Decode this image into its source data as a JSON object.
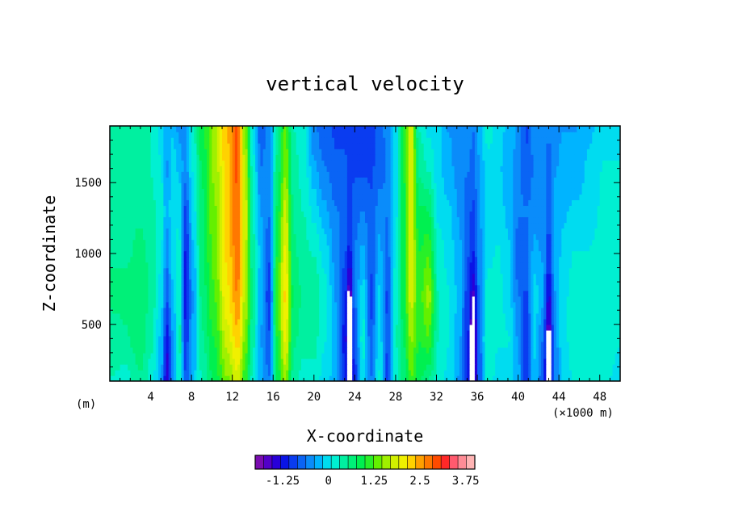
{
  "chart_data": {
    "type": "heatmap",
    "title": "vertical velocity",
    "xlabel": "X-coordinate",
    "ylabel": "Z-coordinate",
    "x_unit_left": "(m)",
    "x_unit_right": "(×1000 m)",
    "xlim": [
      0,
      50
    ],
    "ylim": [
      100,
      1900
    ],
    "x_ticks": [
      4,
      8,
      12,
      16,
      20,
      24,
      28,
      32,
      36,
      40,
      44,
      48
    ],
    "x_tick_labels": [
      "4",
      "8",
      "12",
      "16",
      "20",
      "24",
      "28",
      "32",
      "36",
      "40",
      "44",
      "48"
    ],
    "y_ticks": [
      500,
      1000,
      1500
    ],
    "y_tick_labels": [
      "500",
      "1000",
      "1500"
    ],
    "colorbar": {
      "vmin": -2.0,
      "vmax": 4.0,
      "tick_values": [
        -1.25,
        0,
        1.25,
        2.5,
        3.75
      ],
      "tick_labels": [
        "-1.25",
        "0",
        "1.25",
        "2.5",
        "3.75"
      ],
      "colors": [
        "#7a0cb0",
        "#5200c8",
        "#2800d8",
        "#0a14e6",
        "#0a3cf0",
        "#0a64f5",
        "#0a8cfa",
        "#00b4ff",
        "#00dcf0",
        "#00f0d2",
        "#00f0a0",
        "#00f078",
        "#00f050",
        "#28f028",
        "#64f000",
        "#a0f000",
        "#d2f000",
        "#f0f000",
        "#ffd200",
        "#ffa000",
        "#ff7800",
        "#ff4b00",
        "#ff2828",
        "#ff5a6e",
        "#ff8c96",
        "#ffb4b4"
      ]
    },
    "columns": [
      {
        "x": 0.0,
        "w": [
          0.3,
          0.4,
          0.6,
          0.5,
          0.4,
          0.5,
          0.4
        ]
      },
      {
        "x": 1.5,
        "w": [
          0.2,
          0.5,
          0.6,
          0.5,
          0.5,
          0.4,
          0.5
        ]
      },
      {
        "x": 3.0,
        "w": [
          0.5,
          0.7,
          0.7,
          0.6,
          0.5,
          0.5,
          0.5
        ]
      },
      {
        "x": 4.0,
        "w": [
          0.2,
          0.4,
          0.5,
          0.5,
          0.4,
          0.3,
          0.3
        ]
      },
      {
        "x": 5.0,
        "w": [
          -0.3,
          -0.2,
          0.0,
          0.1,
          0.2,
          0.1,
          0.0
        ]
      },
      {
        "x": 5.6,
        "w": [
          -1.5,
          -1.2,
          -0.8,
          -0.5,
          -0.3,
          -0.4,
          -0.3
        ]
      },
      {
        "x": 6.2,
        "w": [
          -0.5,
          -0.4,
          -0.2,
          0.0,
          0.1,
          0.0,
          -0.2
        ]
      },
      {
        "x": 6.8,
        "w": [
          0.3,
          0.4,
          0.3,
          0.2,
          0.0,
          -0.2,
          -0.5
        ]
      },
      {
        "x": 7.4,
        "w": [
          -0.8,
          -1.0,
          -1.2,
          -1.1,
          -0.9,
          -0.5,
          -0.4
        ]
      },
      {
        "x": 8.2,
        "w": [
          -0.2,
          -0.3,
          -0.4,
          -0.2,
          0.0,
          0.1,
          0.3
        ]
      },
      {
        "x": 9.0,
        "w": [
          0.3,
          0.5,
          0.6,
          0.7,
          0.7,
          0.8,
          0.9
        ]
      },
      {
        "x": 10.2,
        "w": [
          0.8,
          1.0,
          1.2,
          1.3,
          1.4,
          1.5,
          1.5
        ]
      },
      {
        "x": 11.5,
        "w": [
          1.4,
          1.8,
          2.1,
          2.2,
          2.3,
          2.3,
          2.4
        ]
      },
      {
        "x": 12.5,
        "w": [
          1.8,
          2.3,
          2.6,
          2.8,
          2.8,
          2.9,
          2.9
        ]
      },
      {
        "x": 13.3,
        "w": [
          1.0,
          1.4,
          1.6,
          1.7,
          1.8,
          1.6,
          1.4
        ]
      },
      {
        "x": 14.0,
        "w": [
          0.2,
          0.4,
          0.5,
          0.4,
          0.3,
          0.2,
          0.0
        ]
      },
      {
        "x": 14.8,
        "w": [
          -0.3,
          -0.4,
          -0.3,
          -0.2,
          -0.4,
          -0.6,
          -0.8
        ]
      },
      {
        "x": 15.6,
        "w": [
          -0.6,
          -0.8,
          -1.0,
          -0.8,
          -0.6,
          -0.5,
          -0.5
        ]
      },
      {
        "x": 16.4,
        "w": [
          0.8,
          1.0,
          1.2,
          1.0,
          0.8,
          0.6,
          0.4
        ]
      },
      {
        "x": 17.2,
        "w": [
          1.5,
          2.0,
          2.2,
          2.0,
          1.8,
          1.4,
          1.3
        ]
      },
      {
        "x": 18.0,
        "w": [
          0.4,
          0.6,
          0.7,
          0.6,
          0.5,
          0.4,
          0.3
        ]
      },
      {
        "x": 19.0,
        "w": [
          0.2,
          0.4,
          0.5,
          0.4,
          0.3,
          0.2,
          0.1
        ]
      },
      {
        "x": 20.0,
        "w": [
          0.2,
          0.4,
          0.5,
          0.3,
          0.0,
          -0.3,
          -0.6
        ]
      },
      {
        "x": 21.0,
        "w": [
          0.0,
          0.1,
          0.2,
          0.0,
          -0.3,
          -0.6,
          -0.8
        ]
      },
      {
        "x": 22.2,
        "w": [
          -0.3,
          -0.3,
          -0.4,
          -0.5,
          -0.6,
          -0.8,
          -0.9
        ]
      },
      {
        "x": 23.0,
        "w": [
          -1.0,
          -1.2,
          -1.0,
          -0.8,
          -0.7,
          -0.8,
          -0.9
        ]
      },
      {
        "x": 23.5,
        "w": [
          -2.0,
          -2.0,
          -1.8,
          -1.2,
          -0.9,
          -0.9,
          -1.0
        ]
      },
      {
        "x": 24.0,
        "w": [
          -1.0,
          -0.8,
          -0.6,
          -0.6,
          -0.7,
          -0.9,
          -1.0
        ]
      },
      {
        "x": 24.8,
        "w": [
          0.0,
          0.2,
          0.0,
          -0.3,
          -0.6,
          -0.9,
          -1.0
        ]
      },
      {
        "x": 25.6,
        "w": [
          -0.6,
          -0.8,
          -0.9,
          -0.8,
          -0.8,
          -0.9,
          -0.9
        ]
      },
      {
        "x": 26.4,
        "w": [
          0.1,
          0.0,
          -0.1,
          -0.3,
          -0.5,
          -0.7,
          -0.8
        ]
      },
      {
        "x": 27.2,
        "w": [
          -1.0,
          -0.8,
          -0.9,
          -0.7,
          -0.6,
          -0.6,
          -0.5
        ]
      },
      {
        "x": 28.0,
        "w": [
          0.2,
          0.3,
          0.2,
          0.1,
          0.0,
          -0.1,
          0.0
        ]
      },
      {
        "x": 28.8,
        "w": [
          0.6,
          0.8,
          0.9,
          0.9,
          0.9,
          1.0,
          1.0
        ]
      },
      {
        "x": 29.5,
        "w": [
          1.2,
          1.5,
          1.8,
          1.9,
          1.9,
          2.0,
          1.8
        ]
      },
      {
        "x": 30.3,
        "w": [
          0.8,
          1.0,
          1.1,
          1.0,
          0.8,
          0.5,
          0.3
        ]
      },
      {
        "x": 31.2,
        "w": [
          0.5,
          1.2,
          1.6,
          1.2,
          0.8,
          0.3,
          0.0
        ]
      },
      {
        "x": 32.2,
        "w": [
          0.2,
          0.3,
          0.3,
          0.2,
          0.0,
          -0.1,
          0.0
        ]
      },
      {
        "x": 33.2,
        "w": [
          0.0,
          0.1,
          0.1,
          0.0,
          -0.1,
          -0.3,
          -0.4
        ]
      },
      {
        "x": 34.2,
        "w": [
          -0.4,
          -0.3,
          -0.2,
          -0.3,
          -0.4,
          -0.5,
          -0.5
        ]
      },
      {
        "x": 35.0,
        "w": [
          -1.0,
          -1.0,
          -0.9,
          -0.8,
          -0.7,
          -0.6,
          -0.5
        ]
      },
      {
        "x": 35.6,
        "w": [
          -2.0,
          -2.0,
          -1.6,
          -1.1,
          -0.9,
          -0.7,
          -0.6
        ]
      },
      {
        "x": 36.2,
        "w": [
          -0.8,
          -0.7,
          -0.6,
          -0.5,
          -0.4,
          -0.4,
          -0.3
        ]
      },
      {
        "x": 37.0,
        "w": [
          0.2,
          0.3,
          0.2,
          0.0,
          0.0,
          0.0,
          0.2
        ]
      },
      {
        "x": 38.0,
        "w": [
          0.0,
          0.1,
          0.2,
          0.1,
          0.0,
          -0.1,
          0.0
        ]
      },
      {
        "x": 39.0,
        "w": [
          0.0,
          0.1,
          0.0,
          -0.1,
          -0.2,
          -0.3,
          -0.2
        ]
      },
      {
        "x": 40.0,
        "w": [
          -0.3,
          -0.4,
          -0.6,
          -0.7,
          -0.6,
          -0.5,
          -0.4
        ]
      },
      {
        "x": 40.8,
        "w": [
          -1.0,
          -1.0,
          -0.9,
          -0.7,
          -0.6,
          -0.8,
          -0.9
        ]
      },
      {
        "x": 41.6,
        "w": [
          -0.2,
          -0.1,
          0.0,
          -0.3,
          -0.5,
          -0.6,
          -0.5
        ]
      },
      {
        "x": 42.4,
        "w": [
          -0.8,
          -0.6,
          -0.3,
          -0.4,
          -0.5,
          -0.5,
          -0.4
        ]
      },
      {
        "x": 43.0,
        "w": [
          -2.0,
          -1.8,
          -1.4,
          -1.0,
          -0.8,
          -0.7,
          -0.6
        ]
      },
      {
        "x": 43.6,
        "w": [
          -0.6,
          -0.5,
          -0.4,
          -0.3,
          -0.3,
          -0.4,
          -0.5
        ]
      },
      {
        "x": 44.4,
        "w": [
          -0.1,
          0.0,
          0.0,
          -0.1,
          -0.2,
          -0.3,
          -0.4
        ]
      },
      {
        "x": 45.5,
        "w": [
          0.1,
          0.2,
          0.2,
          0.1,
          -0.1,
          -0.3,
          -0.4
        ]
      },
      {
        "x": 47.0,
        "w": [
          0.2,
          0.3,
          0.2,
          0.1,
          -0.1,
          -0.1,
          -0.2
        ]
      },
      {
        "x": 48.5,
        "w": [
          0.1,
          0.2,
          0.3,
          0.3,
          0.2,
          0.1,
          0.0
        ]
      },
      {
        "x": 50.0,
        "w": [
          0.0,
          0.1,
          0.2,
          0.2,
          0.1,
          0.1,
          0.0
        ]
      }
    ],
    "z_levels": [
      100,
      400,
      700,
      1000,
      1300,
      1600,
      1900
    ]
  }
}
